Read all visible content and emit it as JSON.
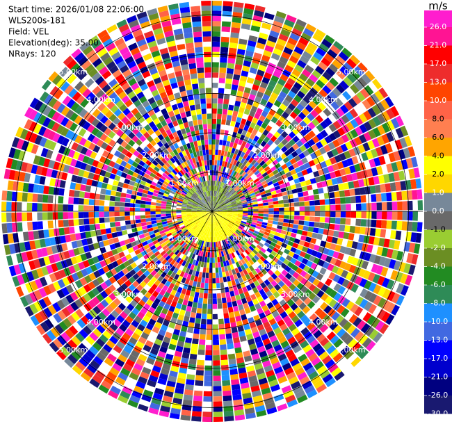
{
  "header": {
    "lines": [
      "Start time: 2026/01/08 22:06:00",
      "WLS200s-181",
      "Field: VEL",
      "Elevation(deg): 35.00",
      "NRays: 120"
    ]
  },
  "range_rings": {
    "labels": [
      "1.00km",
      "2.00km",
      "3.00km",
      "4.00km",
      "5.00km"
    ]
  },
  "colorbar": {
    "unit": "m/s",
    "colors": [
      "#ff1dce",
      "#ff1493",
      "#ff0000",
      "#ee2c2c",
      "#ff4500",
      "#ff6347",
      "#ff7f50",
      "#ffa500",
      "#ffff00",
      "#ffd700",
      "#778899",
      "#696969",
      "#9acd32",
      "#6b8e23",
      "#228b22",
      "#2e8b57",
      "#1e90ff",
      "#4169e1",
      "#0000ff",
      "#0000cd",
      "#000080",
      "#191970"
    ],
    "ticks": [
      {
        "value": 26,
        "label": "26.0"
      },
      {
        "value": 21,
        "label": "21.0"
      },
      {
        "value": 17,
        "label": "17.0"
      },
      {
        "value": 13,
        "label": "13.0"
      },
      {
        "value": 10,
        "label": "10.0"
      },
      {
        "value": 8,
        "label": "8.0"
      },
      {
        "value": 6,
        "label": "6.0"
      },
      {
        "value": 4,
        "label": "4.0"
      },
      {
        "value": 2,
        "label": "2.0"
      },
      {
        "value": 1,
        "label": "1.0"
      },
      {
        "value": 0,
        "label": "0.0"
      },
      {
        "value": -1,
        "label": "-1.0"
      },
      {
        "value": -2,
        "label": "-2.0"
      },
      {
        "value": -4,
        "label": "-4.0"
      },
      {
        "value": -6,
        "label": "-6.0"
      },
      {
        "value": -8,
        "label": "-8.0"
      },
      {
        "value": -10,
        "label": "-10.0"
      },
      {
        "value": -13,
        "label": "-13.0"
      },
      {
        "value": -17,
        "label": "-17.0"
      },
      {
        "value": -21,
        "label": "-21.0"
      },
      {
        "value": -26,
        "label": "-26.0"
      },
      {
        "value": -30,
        "label": "-30.0"
      }
    ]
  }
}
